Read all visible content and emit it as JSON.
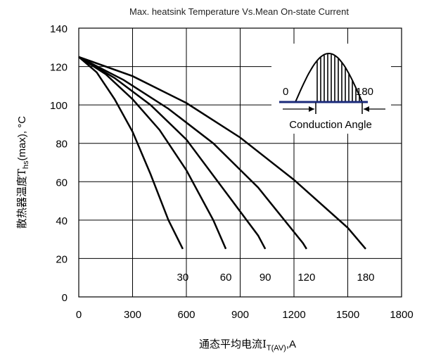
{
  "chart_data": {
    "type": "line",
    "title": "Max. heatsink Temperature Vs.Mean On-state Current",
    "ylabel": {
      "main": "散热器温度T",
      "sub": "hs",
      "suffix": "(max), °C"
    },
    "xlabel": {
      "main": "通态平均电流I",
      "sub": "T(AV)",
      "suffix": ",A"
    },
    "xlim": [
      0,
      1800
    ],
    "ylim": [
      0,
      140
    ],
    "xticks": [
      "0",
      "300",
      "600",
      "900",
      "1200",
      "1500",
      "1800"
    ],
    "yticks": [
      "0",
      "20",
      "40",
      "60",
      "80",
      "100",
      "120",
      "140"
    ],
    "grid": true,
    "series": [
      {
        "name": "30",
        "x": [
          0,
          100,
          200,
          300,
          400,
          500,
          580
        ],
        "y": [
          125,
          117,
          103,
          86,
          64,
          40,
          25
        ]
      },
      {
        "name": "60",
        "x": [
          0,
          150,
          300,
          450,
          600,
          750,
          820
        ],
        "y": [
          125,
          116,
          103,
          87,
          66,
          40,
          25
        ]
      },
      {
        "name": "90",
        "x": [
          0,
          200,
          400,
          600,
          800,
          1000,
          1040
        ],
        "y": [
          125,
          114,
          100,
          82,
          57,
          32,
          25
        ]
      },
      {
        "name": "120",
        "x": [
          0,
          250,
          500,
          750,
          1000,
          1250,
          1270
        ],
        "y": [
          125,
          113,
          98,
          80,
          57,
          28,
          25
        ]
      },
      {
        "name": "180",
        "x": [
          0,
          300,
          600,
          900,
          1200,
          1500,
          1600
        ],
        "y": [
          125,
          115,
          101,
          83,
          61,
          36,
          25
        ]
      }
    ],
    "inset": {
      "label_start": "0",
      "label_end": "180",
      "caption": "Conduction Angle"
    }
  }
}
